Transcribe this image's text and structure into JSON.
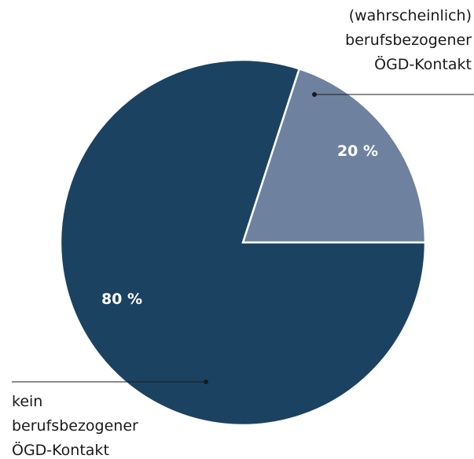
{
  "chart_data": {
    "type": "pie",
    "categories": [
      "(wahrscheinlich) berufsbezogener ÖGD-Kontakt",
      "kein berufsbezogener ÖGD-Kontakt"
    ],
    "values": [
      20,
      80
    ],
    "value_labels": [
      "20 %",
      "80 %"
    ],
    "colors": [
      "#6e829f",
      "#1c4262"
    ]
  }
}
